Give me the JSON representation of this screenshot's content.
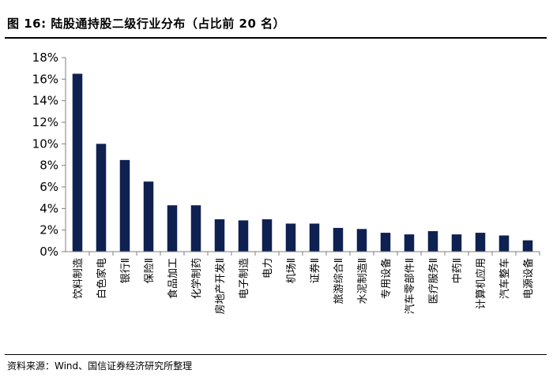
{
  "header": {
    "title": "图 16:  陆股通持股二级行业分布（占比前 20 名）"
  },
  "footer": {
    "source": "资料来源：Wind、国信证券经济研究所整理"
  },
  "colors": {
    "bar": "#0f2151",
    "axis": "#7f7f7f"
  },
  "chart_data": {
    "type": "bar",
    "title": "",
    "xlabel": "",
    "ylabel": "",
    "ylim": [
      0,
      18
    ],
    "ytick_step": 2,
    "ytick_format": "percent",
    "grid": false,
    "legend": "none",
    "categories": [
      "饮料制造",
      "白色家电",
      "银行Ⅱ",
      "保险Ⅱ",
      "食品加工",
      "化学制药",
      "房地产开发Ⅱ",
      "电子制造",
      "电力",
      "机场Ⅱ",
      "证券Ⅱ",
      "旅游综合Ⅱ",
      "水泥制造Ⅱ",
      "专用设备",
      "汽车零部件Ⅱ",
      "医疗服务Ⅱ",
      "中药Ⅱ",
      "计算机应用",
      "汽车整车",
      "电源设备"
    ],
    "values": [
      16.5,
      10.0,
      8.5,
      6.5,
      4.3,
      4.3,
      3.0,
      2.9,
      3.0,
      2.6,
      2.6,
      2.2,
      2.1,
      1.75,
      1.6,
      1.9,
      1.6,
      1.75,
      1.5,
      1.05
    ]
  }
}
